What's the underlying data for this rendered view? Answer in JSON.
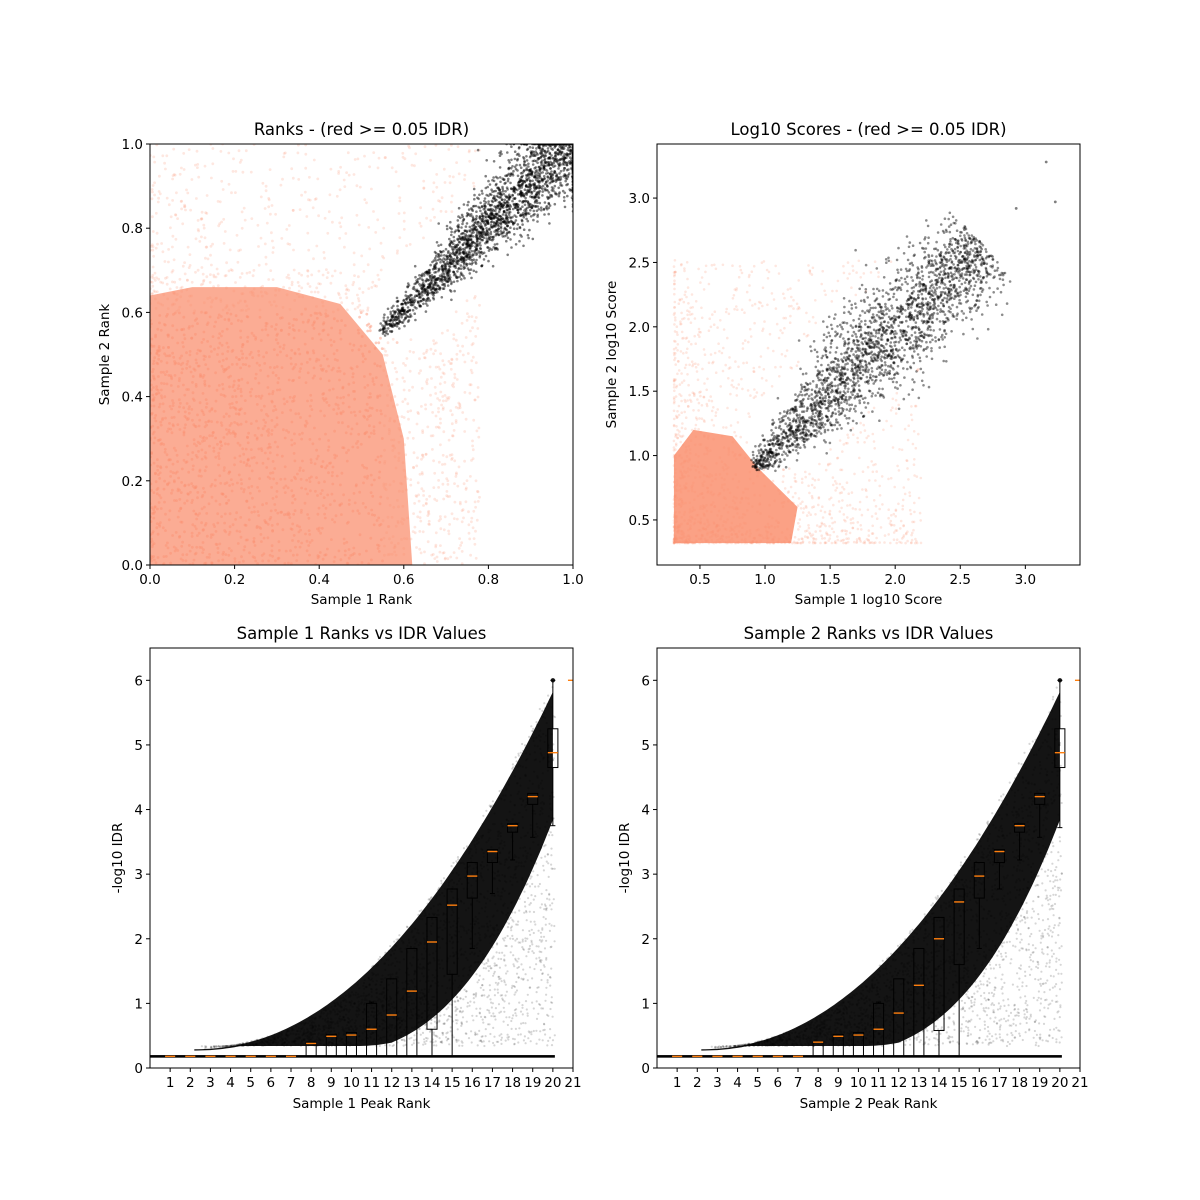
{
  "chart_data": [
    {
      "type": "scatter",
      "title": "Ranks - (red >= 0.05 IDR)",
      "xlabel": "Sample 1 Rank",
      "ylabel": "Sample 2 Rank",
      "xlim": [
        0,
        1
      ],
      "ylim": [
        0,
        1
      ],
      "xticks": [
        0.0,
        0.2,
        0.4,
        0.6,
        0.8,
        1.0
      ],
      "yticks": [
        0.0,
        0.2,
        0.4,
        0.6,
        0.8,
        1.0
      ],
      "grid": false,
      "colors": {
        "low_idr": "#fa9070",
        "high_idr": "#000000"
      },
      "regions": {
        "pass_threshold_cloud": {
          "description_points": [
            [
              0.54,
              0.55
            ],
            [
              0.6,
              0.6
            ],
            [
              0.8,
              0.82
            ],
            [
              1.0,
              1.0
            ]
          ],
          "color": "black"
        },
        "fail_threshold_cloud": {
          "x_range": [
            0,
            0.75
          ],
          "y_range": [
            0,
            1.0
          ],
          "color": "salmon"
        }
      }
    },
    {
      "type": "scatter",
      "title": "Log10 Scores - (red >= 0.05 IDR)",
      "xlabel": "Sample 1 log10 Score",
      "ylabel": "Sample 2 log10 Score",
      "xlim": [
        0.17,
        3.42
      ],
      "ylim": [
        0.15,
        3.42
      ],
      "xticks": [
        0.5,
        1.0,
        1.5,
        2.0,
        2.5,
        3.0
      ],
      "yticks": [
        0.5,
        1.0,
        1.5,
        2.0,
        2.5,
        3.0
      ],
      "grid": false,
      "colors": {
        "low_idr": "#fa9070",
        "high_idr": "#000000"
      },
      "outliers": [
        [
          3.16,
          3.28
        ],
        [
          3.23,
          2.97
        ],
        [
          2.93,
          2.92
        ]
      ]
    },
    {
      "type": "scatter",
      "title": "Sample 1 Ranks vs IDR Values",
      "xlabel": "Sample 1 Peak Rank",
      "ylabel": "-log10 IDR",
      "xlim": [
        0,
        21
      ],
      "ylim": [
        0,
        6.5
      ],
      "xticks": [
        1,
        2,
        3,
        4,
        5,
        6,
        7,
        8,
        9,
        10,
        11,
        12,
        13,
        14,
        15,
        16,
        17,
        18,
        19,
        20,
        21
      ],
      "yticks": [
        0,
        1,
        2,
        3,
        4,
        5,
        6
      ],
      "grid": false,
      "boxplot_medians": [
        0.18,
        0.18,
        0.18,
        0.18,
        0.18,
        0.18,
        0.18,
        0.38,
        0.49,
        0.51,
        0.6,
        0.82,
        1.19,
        1.95,
        2.52,
        2.97,
        3.35,
        3.75,
        4.2,
        4.88,
        6.0
      ],
      "boxplot_q1": [
        0.18,
        0.18,
        0.18,
        0.18,
        0.18,
        0.18,
        0.18,
        0.18,
        0.18,
        0.18,
        0.18,
        0.18,
        0.18,
        0.6,
        1.45,
        2.63,
        3.18,
        3.65,
        4.08,
        4.65,
        6.0
      ],
      "boxplot_q3": [
        0.18,
        0.18,
        0.18,
        0.18,
        0.18,
        0.18,
        0.18,
        0.4,
        0.52,
        0.55,
        1.0,
        1.38,
        1.85,
        2.33,
        2.77,
        3.18,
        3.38,
        3.78,
        4.25,
        5.25,
        6.0
      ],
      "boxplot_whisker_low": [
        0.18,
        0.18,
        0.18,
        0.18,
        0.18,
        0.18,
        0.18,
        0.18,
        0.18,
        0.18,
        0.18,
        0.18,
        0.18,
        0.18,
        0.18,
        1.85,
        2.7,
        3.22,
        3.57,
        3.75,
        6.0
      ],
      "boxplot_whisker_high": [
        0.18,
        0.18,
        0.18,
        0.18,
        0.18,
        0.18,
        0.18,
        0.4,
        0.52,
        0.55,
        1.02,
        1.38,
        1.85,
        2.33,
        2.77,
        3.18,
        3.38,
        3.78,
        4.25,
        6.0,
        6.0
      ]
    },
    {
      "type": "scatter",
      "title": "Sample 2 Ranks vs IDR Values",
      "xlabel": "Sample 2 Peak Rank",
      "ylabel": "-log10 IDR",
      "xlim": [
        0,
        21
      ],
      "ylim": [
        0,
        6.5
      ],
      "xticks": [
        1,
        2,
        3,
        4,
        5,
        6,
        7,
        8,
        9,
        10,
        11,
        12,
        13,
        14,
        15,
        16,
        17,
        18,
        19,
        20,
        21
      ],
      "yticks": [
        0,
        1,
        2,
        3,
        4,
        5,
        6
      ],
      "grid": false,
      "boxplot_medians": [
        0.18,
        0.18,
        0.18,
        0.18,
        0.18,
        0.18,
        0.18,
        0.4,
        0.49,
        0.51,
        0.6,
        0.85,
        1.28,
        2.0,
        2.57,
        2.97,
        3.35,
        3.75,
        4.2,
        4.88,
        6.0
      ],
      "boxplot_q1": [
        0.18,
        0.18,
        0.18,
        0.18,
        0.18,
        0.18,
        0.18,
        0.18,
        0.18,
        0.18,
        0.18,
        0.18,
        0.18,
        0.58,
        1.6,
        2.63,
        3.18,
        3.65,
        4.08,
        4.65,
        6.0
      ],
      "boxplot_q3": [
        0.18,
        0.18,
        0.18,
        0.18,
        0.18,
        0.18,
        0.18,
        0.4,
        0.52,
        0.55,
        1.0,
        1.38,
        1.85,
        2.33,
        2.77,
        3.18,
        3.38,
        3.78,
        4.25,
        5.25,
        6.0
      ],
      "boxplot_whisker_low": [
        0.18,
        0.18,
        0.18,
        0.18,
        0.18,
        0.18,
        0.18,
        0.18,
        0.18,
        0.18,
        0.18,
        0.18,
        0.18,
        0.18,
        0.18,
        1.85,
        2.77,
        3.22,
        3.57,
        3.72,
        6.0
      ],
      "boxplot_whisker_high": [
        0.18,
        0.18,
        0.18,
        0.18,
        0.18,
        0.18,
        0.18,
        0.4,
        0.52,
        0.55,
        1.02,
        1.38,
        1.85,
        2.33,
        2.77,
        3.18,
        3.38,
        3.78,
        4.25,
        6.0,
        6.0
      ]
    }
  ]
}
